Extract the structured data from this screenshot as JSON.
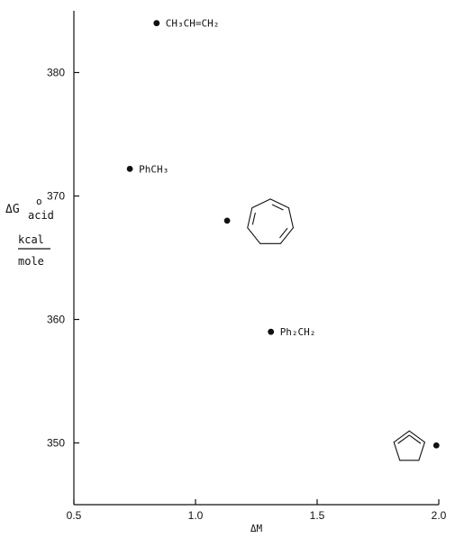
{
  "chart_data": {
    "type": "scatter",
    "title": "",
    "xlabel": "ΔM",
    "ylabel": {
      "main": "ΔG",
      "superscript": "o",
      "subscript": "acid",
      "unit_numerator": "kcal",
      "unit_denominator": "mole"
    },
    "xlim": [
      0.5,
      2.0
    ],
    "ylim": [
      345,
      385
    ],
    "x_ticks": [
      "0.5",
      "1.0",
      "1.5",
      "2.0"
    ],
    "y_ticks": [
      "350",
      "360",
      "370",
      "380"
    ],
    "grid": false,
    "legend": "none",
    "points": [
      {
        "x": 0.84,
        "y": 384.0,
        "label": "CH₃CH=CH₂",
        "structure": ""
      },
      {
        "x": 0.73,
        "y": 372.2,
        "label": "PhCH₃",
        "structure": ""
      },
      {
        "x": 1.13,
        "y": 368.0,
        "label": "",
        "structure": "cycloheptatriene"
      },
      {
        "x": 1.31,
        "y": 359.0,
        "label": "Ph₂CH₂",
        "structure": ""
      },
      {
        "x": 1.99,
        "y": 349.8,
        "label": "",
        "structure": "cyclopentadiene"
      }
    ]
  }
}
